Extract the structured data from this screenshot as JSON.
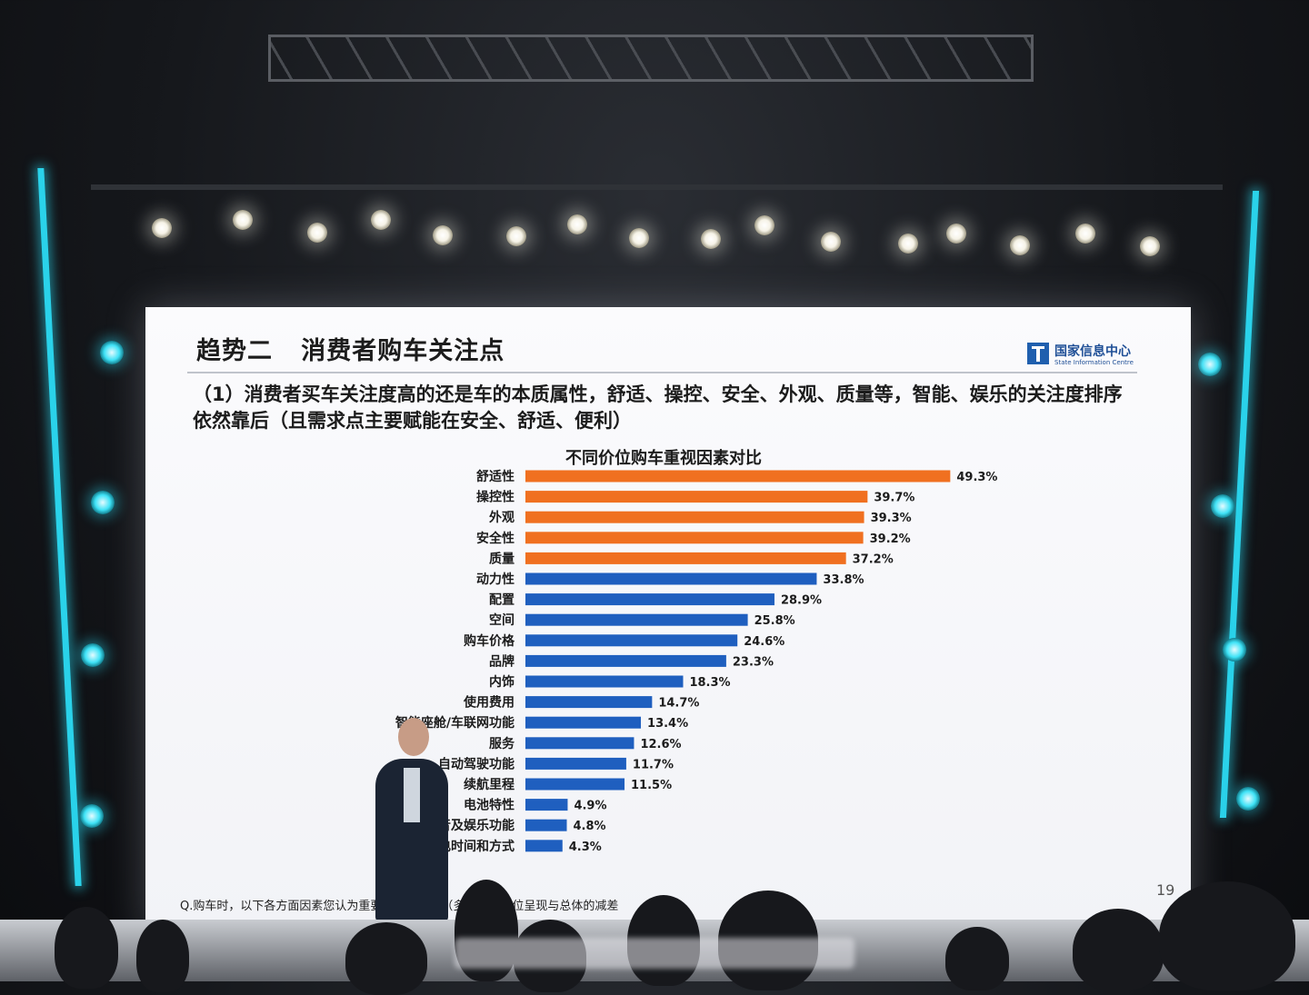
{
  "slide": {
    "title": "趋势二   消费者购车关注点",
    "subtitle": "（1）消费者买车关注度高的还是车的本质属性，舒适、操控、安全、外观、质量等，智能、娱乐的关注度排序依然靠后（且需求点主要赋能在安全、舒适、便利）",
    "logo_cn": "国家信息中心",
    "logo_en": "State Information Centre",
    "footnote": "Q.购车时，以下各方面因素您认为重要的有哪些？（多选）各价位呈现与总体的减差",
    "page_number": "19"
  },
  "chart_data": {
    "type": "bar",
    "orientation": "horizontal",
    "title": "不同价位购车重视因素对比",
    "categories": [
      "舒适性",
      "操控性",
      "外观",
      "安全性",
      "质量",
      "动力性",
      "配置",
      "空间",
      "购车价格",
      "品牌",
      "内饰",
      "使用费用",
      "智能座舱/车联网功能",
      "服务",
      "自动驾驶功能",
      "续航里程",
      "电池特性",
      "影音及娱乐功能",
      "充电时间和方式"
    ],
    "values": [
      49.3,
      39.7,
      39.3,
      39.2,
      37.2,
      33.8,
      28.9,
      25.8,
      24.6,
      23.3,
      18.3,
      14.7,
      13.4,
      12.6,
      11.7,
      11.5,
      4.9,
      4.8,
      4.3
    ],
    "value_labels": [
      "49.3%",
      "39.7%",
      "39.3%",
      "39.2%",
      "37.2%",
      "33.8%",
      "28.9%",
      "25.8%",
      "24.6%",
      "23.3%",
      "18.3%",
      "14.7%",
      "13.4%",
      "12.6%",
      "11.7%",
      "11.5%",
      "4.9%",
      "4.8%",
      "4.3%"
    ],
    "highlight_count": 5,
    "colors": {
      "highlight": "#f07020",
      "normal": "#1f5fbf"
    },
    "xlim": [
      0,
      50
    ],
    "grid": false,
    "legend": "none"
  }
}
